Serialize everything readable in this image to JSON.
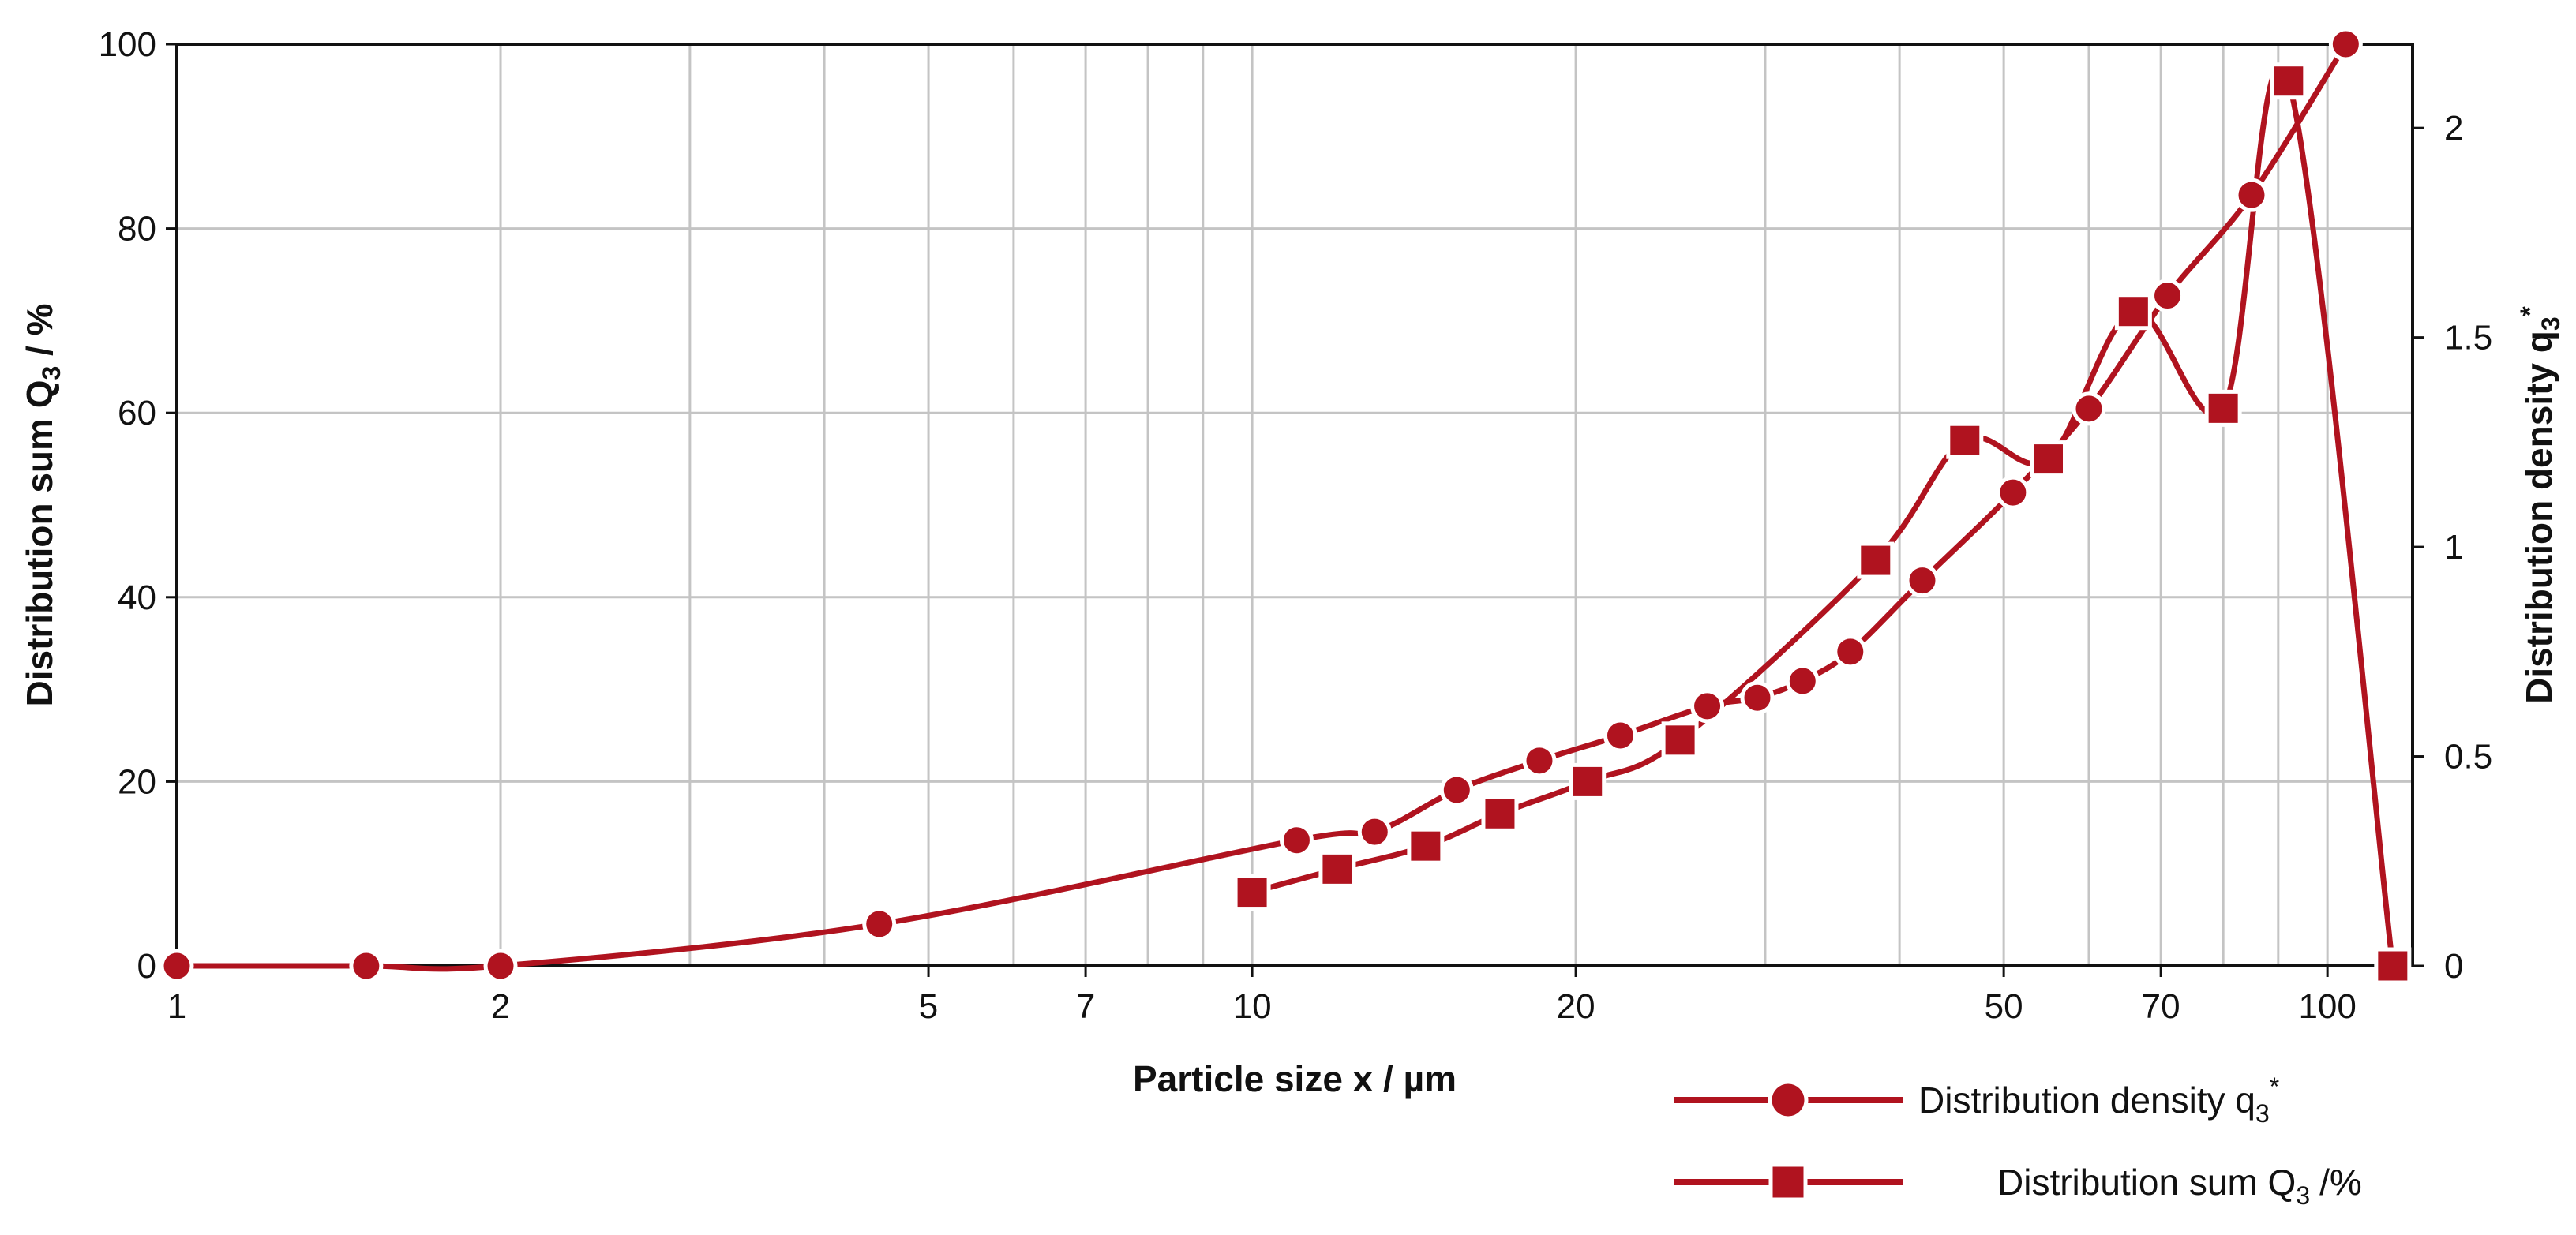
{
  "chart_data": {
    "type": "line",
    "xlabel": "Particle size  x / µm",
    "ylabel_left": "Distribution sum Q",
    "ylabel_left_sub": "3",
    "ylabel_left_unit": " / %",
    "ylabel_right": "Distribution density q",
    "ylabel_right_sub": "3",
    "ylabel_right_sup": "*",
    "x_scale": "log",
    "xlim": [
      1,
      120
    ],
    "ylim_left": [
      0,
      100
    ],
    "ylim_right": [
      0,
      2.2
    ],
    "grid": true,
    "x_ticks": [
      {
        "value": 1,
        "label": "1"
      },
      {
        "value": 2,
        "label": "2"
      },
      {
        "value": 5,
        "label": "5"
      },
      {
        "value": 7,
        "label": "7"
      },
      {
        "value": 10,
        "label": "10"
      },
      {
        "value": 20,
        "label": "20"
      },
      {
        "value": 50,
        "label": "50"
      },
      {
        "value": 70,
        "label": "70"
      },
      {
        "value": 100,
        "label": "100"
      }
    ],
    "y_left_ticks": [
      {
        "value": 0,
        "label": "0"
      },
      {
        "value": 20,
        "label": "20"
      },
      {
        "value": 40,
        "label": "40"
      },
      {
        "value": 60,
        "label": "60"
      },
      {
        "value": 80,
        "label": "80"
      },
      {
        "value": 100,
        "label": "100"
      }
    ],
    "y_right_ticks": [
      {
        "value": 0,
        "label": "0"
      },
      {
        "value": 0.5,
        "label": "0.5"
      },
      {
        "value": 1,
        "label": "1"
      },
      {
        "value": 1.5,
        "label": "1.5"
      },
      {
        "value": 2,
        "label": "2"
      }
    ],
    "legend_position": "bottom-right",
    "color": "#b0131f",
    "series": [
      {
        "name": "Distribution density q",
        "name_sub": "3",
        "name_sup": "*",
        "marker": "circle",
        "axis": "right",
        "points": [
          {
            "x": 1.0,
            "y": 0.0
          },
          {
            "x": 1.5,
            "y": 0.0
          },
          {
            "x": 2.0,
            "y": 0.0
          },
          {
            "x": 4.5,
            "y": 0.1
          },
          {
            "x": 11,
            "y": 0.3
          },
          {
            "x": 13,
            "y": 0.32
          },
          {
            "x": 15.5,
            "y": 0.42
          },
          {
            "x": 18.5,
            "y": 0.49
          },
          {
            "x": 22,
            "y": 0.55
          },
          {
            "x": 26.5,
            "y": 0.62
          },
          {
            "x": 29.5,
            "y": 0.64
          },
          {
            "x": 32.5,
            "y": 0.68
          },
          {
            "x": 36,
            "y": 0.75
          },
          {
            "x": 42,
            "y": 0.92
          },
          {
            "x": 51,
            "y": 1.13
          },
          {
            "x": 60,
            "y": 1.33
          },
          {
            "x": 71,
            "y": 1.6
          },
          {
            "x": 85,
            "y": 1.84
          },
          {
            "x": 104,
            "y": 2.2
          }
        ]
      },
      {
        "name": "Distribution sum Q",
        "name_sub": "3",
        "name_unit": "/%",
        "marker": "square",
        "axis": "left",
        "points": [
          {
            "x": 10,
            "y": 8
          },
          {
            "x": 12,
            "y": 10.5
          },
          {
            "x": 14.5,
            "y": 13
          },
          {
            "x": 17,
            "y": 16.5
          },
          {
            "x": 20.5,
            "y": 20
          },
          {
            "x": 25,
            "y": 24.5
          },
          {
            "x": 38,
            "y": 44
          },
          {
            "x": 46,
            "y": 57
          },
          {
            "x": 55,
            "y": 55
          },
          {
            "x": 66,
            "y": 71
          },
          {
            "x": 80,
            "y": 60.5
          },
          {
            "x": 92,
            "y": 96
          },
          {
            "x": 115,
            "y": 0
          }
        ]
      }
    ]
  }
}
